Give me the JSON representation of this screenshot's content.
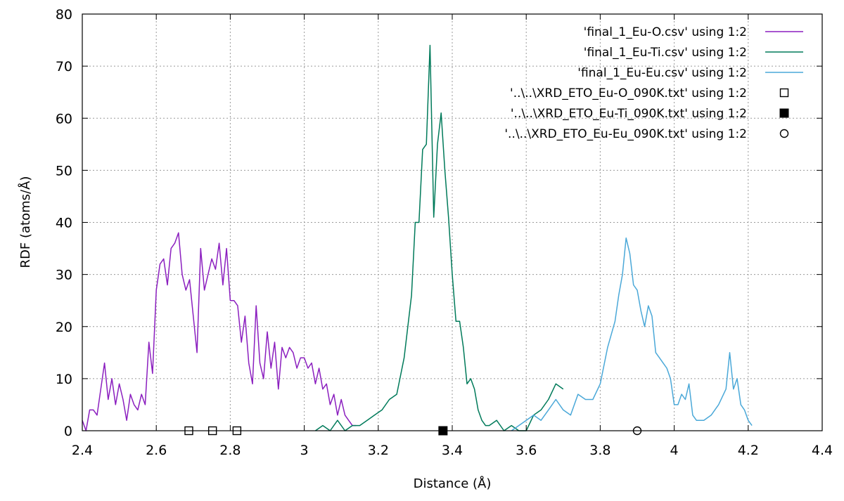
{
  "chart_data": {
    "type": "line",
    "title": "",
    "xlabel": "Distance (Å)",
    "ylabel": "RDF (atoms/Å)",
    "xlim": [
      2.4,
      4.4
    ],
    "ylim": [
      0,
      80
    ],
    "xticks": [
      "2.4",
      "2.6",
      "2.8",
      "3",
      "3.2",
      "3.4",
      "3.6",
      "3.8",
      "4",
      "4.2",
      "4.4"
    ],
    "yticks": [
      "0",
      "10",
      "20",
      "30",
      "40",
      "50",
      "60",
      "70",
      "80"
    ],
    "grid": true,
    "legend_position": "top-right",
    "series": [
      {
        "name": "'final_1_Eu-O.csv' using 1:2",
        "kind": "line",
        "color": "#8b1fbf",
        "x": [
          2.4,
          2.41,
          2.42,
          2.43,
          2.44,
          2.45,
          2.46,
          2.47,
          2.48,
          2.49,
          2.5,
          2.51,
          2.52,
          2.53,
          2.54,
          2.55,
          2.56,
          2.57,
          2.58,
          2.59,
          2.6,
          2.61,
          2.62,
          2.63,
          2.64,
          2.65,
          2.66,
          2.67,
          2.68,
          2.69,
          2.7,
          2.71,
          2.72,
          2.73,
          2.74,
          2.75,
          2.76,
          2.77,
          2.78,
          2.79,
          2.8,
          2.81,
          2.82,
          2.83,
          2.84,
          2.85,
          2.86,
          2.87,
          2.88,
          2.89,
          2.9,
          2.91,
          2.92,
          2.93,
          2.94,
          2.95,
          2.96,
          2.97,
          2.98,
          2.99,
          3.0,
          3.01,
          3.02,
          3.03,
          3.04,
          3.05,
          3.06,
          3.07,
          3.08,
          3.09,
          3.1,
          3.11,
          3.12,
          3.13,
          3.14
        ],
        "y": [
          2,
          0,
          4,
          4,
          3,
          8,
          13,
          6,
          10,
          5,
          9,
          6,
          2,
          7,
          5,
          4,
          7,
          5,
          17,
          11,
          27,
          32,
          33,
          28,
          35,
          36,
          38,
          30,
          27,
          29,
          22,
          15,
          35,
          27,
          30,
          33,
          31,
          36,
          28,
          35,
          25,
          25,
          24,
          17,
          22,
          13,
          9,
          24,
          13,
          10,
          19,
          12,
          17,
          8,
          16,
          14,
          16,
          15,
          12,
          14,
          14,
          12,
          13,
          9,
          12,
          8,
          9,
          5,
          7,
          3,
          6,
          3,
          2,
          1,
          1
        ]
      },
      {
        "name": "'final_1_Eu-Ti.csv' using 1:2",
        "kind": "line",
        "color": "#007a5a",
        "x": [
          3.03,
          3.05,
          3.07,
          3.09,
          3.11,
          3.13,
          3.15,
          3.17,
          3.19,
          3.21,
          3.23,
          3.25,
          3.27,
          3.29,
          3.3,
          3.31,
          3.32,
          3.33,
          3.34,
          3.35,
          3.36,
          3.37,
          3.38,
          3.39,
          3.4,
          3.41,
          3.42,
          3.43,
          3.44,
          3.45,
          3.46,
          3.47,
          3.48,
          3.49,
          3.5,
          3.52,
          3.54,
          3.56,
          3.58,
          3.6,
          3.62,
          3.64,
          3.66,
          3.68,
          3.7
        ],
        "y": [
          0,
          1,
          0,
          2,
          0,
          1,
          1,
          2,
          3,
          4,
          6,
          7,
          14,
          26,
          40,
          40,
          54,
          55,
          74,
          41,
          55,
          61,
          50,
          41,
          30,
          21,
          21,
          16,
          9,
          10,
          8,
          4,
          2,
          1,
          1,
          2,
          0,
          1,
          0,
          0,
          3,
          4,
          6,
          9,
          8
        ]
      },
      {
        "name": "'final_1_Eu-Eu.csv' using 1:2",
        "kind": "line",
        "color": "#4aa8d8",
        "x": [
          3.56,
          3.58,
          3.6,
          3.62,
          3.64,
          3.66,
          3.68,
          3.7,
          3.72,
          3.74,
          3.76,
          3.78,
          3.8,
          3.82,
          3.84,
          3.85,
          3.86,
          3.87,
          3.88,
          3.89,
          3.9,
          3.91,
          3.92,
          3.93,
          3.94,
          3.95,
          3.96,
          3.97,
          3.98,
          3.99,
          4.0,
          4.01,
          4.02,
          4.03,
          4.04,
          4.05,
          4.06,
          4.08,
          4.1,
          4.12,
          4.14,
          4.15,
          4.16,
          4.17,
          4.18,
          4.19,
          4.2,
          4.21
        ],
        "y": [
          0,
          1,
          2,
          3,
          2,
          4,
          6,
          4,
          3,
          7,
          6,
          6,
          9,
          16,
          21,
          26,
          30,
          37,
          34,
          28,
          27,
          23,
          20,
          24,
          22,
          15,
          14,
          13,
          12,
          10,
          5,
          5,
          7,
          6,
          9,
          3,
          2,
          2,
          3,
          5,
          8,
          15,
          8,
          10,
          5,
          4,
          2,
          1
        ]
      },
      {
        "name": "'..\\..\\XRD_ETO_Eu-O_090K.txt' using 1:2",
        "kind": "marker",
        "marker": "open-square",
        "color": "#000000",
        "x": [
          2.688,
          2.752,
          2.818
        ],
        "y": [
          0,
          0,
          0
        ]
      },
      {
        "name": "'..\\..\\XRD_ETO_Eu-Ti_090K.txt' using 1:2",
        "kind": "marker",
        "marker": "filled-square",
        "color": "#000000",
        "x": [
          3.375
        ],
        "y": [
          0
        ]
      },
      {
        "name": "'..\\..\\XRD_ETO_Eu-Eu_090K.txt' using 1:2",
        "kind": "marker",
        "marker": "open-circle",
        "color": "#000000",
        "x": [
          3.9
        ],
        "y": [
          0
        ]
      }
    ]
  }
}
